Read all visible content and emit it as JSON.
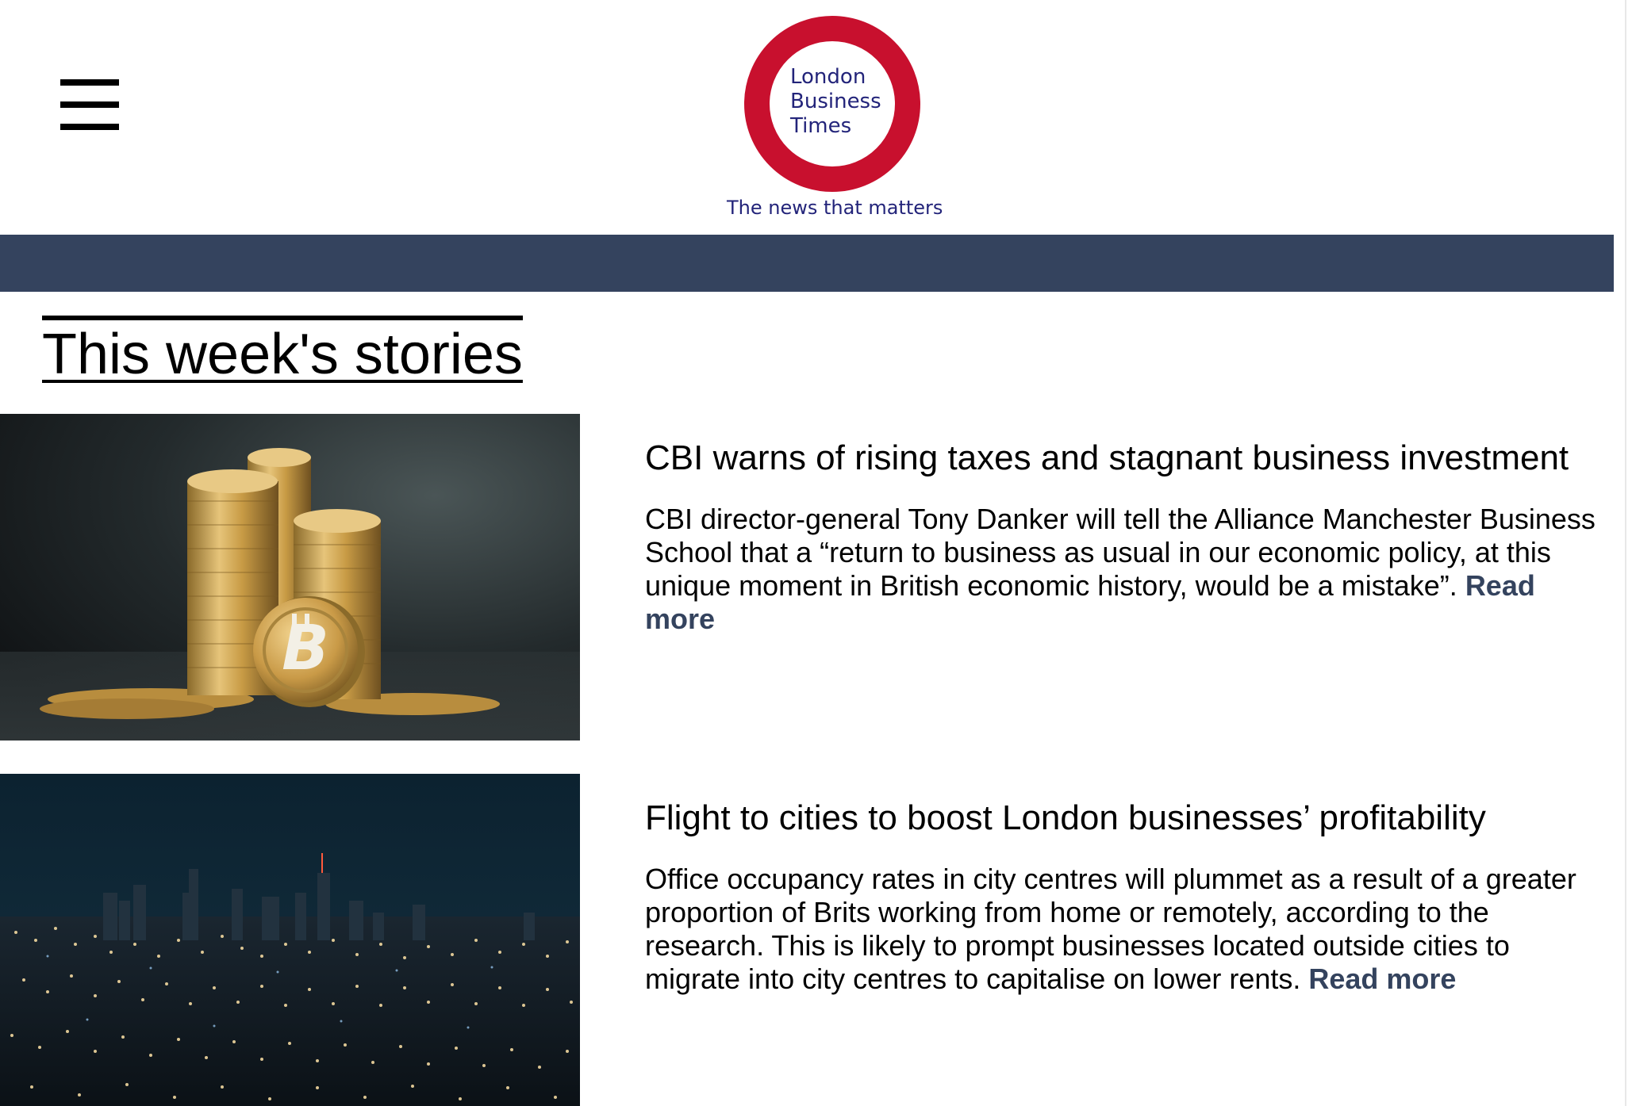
{
  "header": {
    "logo": {
      "line1": "London",
      "line2": "Business",
      "line3": "Times",
      "tagline": "The news that matters"
    },
    "menu_icon": "hamburger-icon",
    "nav_bar_color": "#34435e"
  },
  "section": {
    "title": "This week's stories"
  },
  "stories": [
    {
      "image": "bitcoin-coins-image",
      "headline": "CBI warns of rising taxes and stagnant business investment",
      "body": "CBI director-general Tony Danker will tell the Alliance Manchester Business School that a “return to business as usual in our economic policy, at this unique moment in British economic history, would be a mistake”.",
      "read_more": "Read more"
    },
    {
      "image": "city-night-skyline-image",
      "headline": "Flight to cities to boost London businesses’ profitability",
      "body": "Office occupancy rates in city centres will plummet as a result of a greater proportion of Brits working from home or remotely, according to the research. This is likely to prompt businesses located outside cities to migrate into city centres to capitalise on lower rents.",
      "read_more": "Read more"
    }
  ],
  "colors": {
    "brand_red": "#c8102e",
    "brand_navy": "#23247a",
    "link": "#34435e"
  }
}
